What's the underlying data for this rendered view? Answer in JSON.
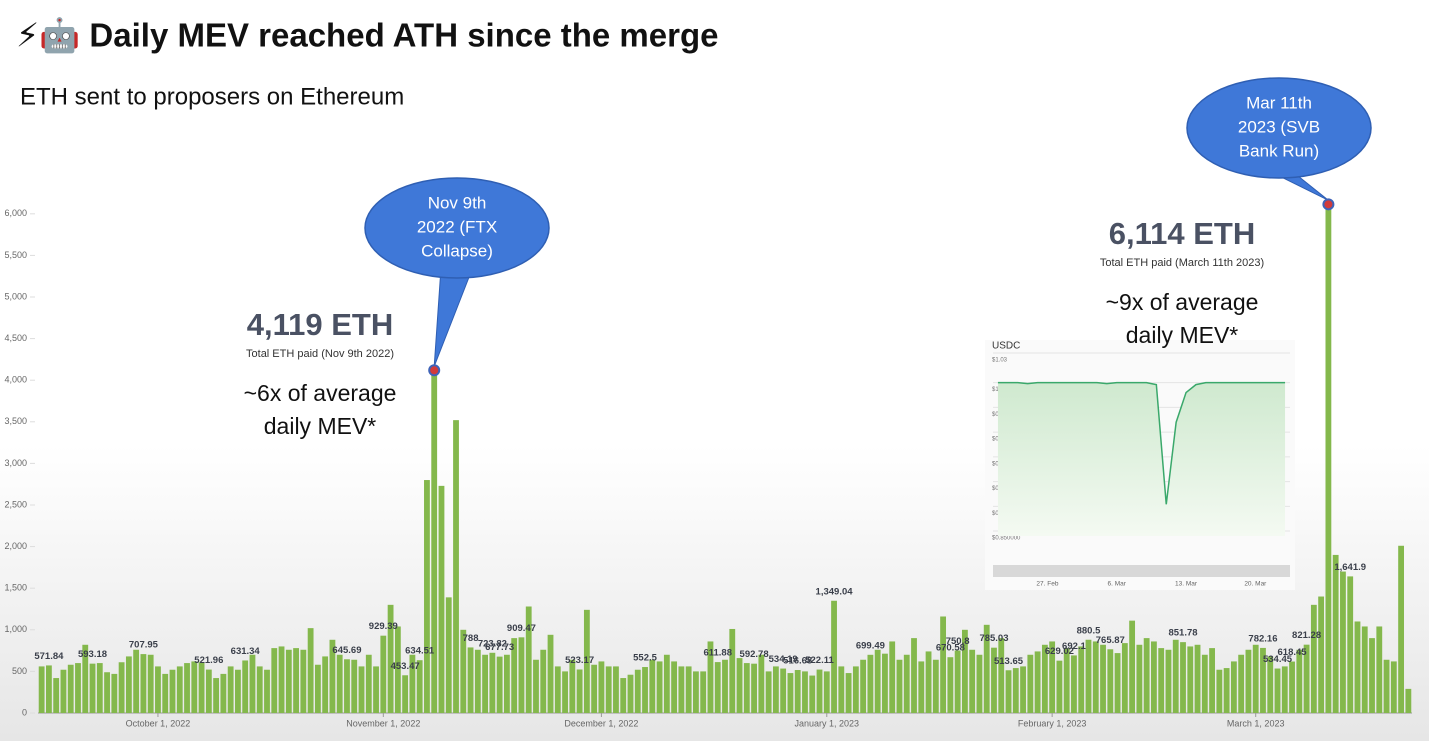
{
  "chart_data": {
    "type": "bar",
    "title": "⚡🤖 Daily MEV reached ATH since the merge",
    "subtitle": "ETH sent to proposers on Ethereum",
    "color": "#84b84c",
    "ylim": [
      0,
      6250
    ],
    "yticks": [
      0,
      500,
      {
        "value": 1000,
        "label": "1,000"
      },
      {
        "value": 1500,
        "label": "1,500"
      },
      {
        "value": 2000,
        "label": "2,000"
      },
      {
        "value": 2500,
        "label": "2,500"
      },
      {
        "value": 3000,
        "label": "3,000"
      },
      {
        "value": 3500,
        "label": "3,500"
      },
      {
        "value": 4000,
        "label": "4,000"
      },
      {
        "value": 4500,
        "label": "4,500"
      },
      {
        "value": 5000,
        "label": "5,000"
      },
      {
        "value": 5500,
        "label": "5,500"
      },
      {
        "value": 6000,
        "label": "6,000"
      }
    ],
    "categories": [
      null,
      null,
      null,
      null,
      null,
      null,
      null,
      null,
      null,
      null,
      null,
      null,
      null,
      null,
      null,
      null,
      "October 1, 2022",
      null,
      null,
      null,
      null,
      null,
      null,
      null,
      null,
      null,
      null,
      null,
      null,
      null,
      null,
      null,
      null,
      null,
      null,
      null,
      null,
      null,
      null,
      null,
      null,
      null,
      null,
      null,
      null,
      null,
      null,
      "November 1, 2022",
      null,
      null,
      null,
      null,
      null,
      null,
      null,
      null,
      null,
      null,
      null,
      null,
      null,
      null,
      null,
      null,
      null,
      null,
      null,
      null,
      null,
      null,
      null,
      null,
      null,
      null,
      null,
      null,
      null,
      "December 1, 2022",
      null,
      null,
      null,
      null,
      null,
      null,
      null,
      null,
      null,
      null,
      null,
      null,
      null,
      null,
      null,
      null,
      null,
      null,
      null,
      null,
      null,
      null,
      null,
      null,
      null,
      null,
      null,
      null,
      null,
      null,
      "January 1, 2023",
      null,
      null,
      null,
      null,
      null,
      null,
      null,
      null,
      null,
      null,
      null,
      null,
      null,
      null,
      null,
      null,
      null,
      null,
      null,
      null,
      null,
      null,
      null,
      null,
      null,
      null,
      null,
      null,
      null,
      null,
      "February 1, 2023",
      null,
      null,
      null,
      null,
      null,
      null,
      null,
      null,
      null,
      null,
      null,
      null,
      null,
      null,
      null,
      null,
      null,
      null,
      null,
      null,
      null,
      null,
      null,
      null,
      null,
      null,
      null,
      "March 1, 2023",
      null,
      null,
      null,
      null,
      null,
      null,
      null,
      null,
      null,
      null,
      null,
      null,
      null,
      null,
      null,
      null,
      null,
      null,
      null,
      null,
      null
    ],
    "values": [
      560,
      571.84,
      420,
      520,
      580,
      600,
      820,
      593.18,
      600,
      490,
      470,
      610,
      680,
      760,
      707.95,
      700,
      560,
      470,
      520,
      560,
      600,
      620,
      610,
      521.96,
      420,
      470,
      560,
      520,
      631.34,
      700,
      560,
      520,
      780,
      800,
      760,
      780,
      760,
      1020,
      580,
      680,
      880,
      700,
      645.69,
      640,
      560,
      700,
      560,
      929.39,
      1300,
      1040,
      453.47,
      700,
      634.51,
      2800,
      4119,
      2730,
      1390,
      3520,
      1000,
      788,
      760,
      700,
      723.82,
      677.73,
      700,
      900,
      909.47,
      1280,
      640,
      760,
      940,
      560,
      500,
      640,
      523.17,
      1240,
      580,
      620,
      560,
      560,
      420,
      460,
      520,
      552.5,
      640,
      620,
      700,
      620,
      560,
      560,
      500,
      500,
      860,
      611.88,
      640,
      1010,
      660,
      600,
      592.78,
      700,
      500,
      560,
      534.19,
      480,
      516.68,
      500,
      450,
      522.11,
      500,
      1349.04,
      560,
      480,
      560,
      640,
      699.49,
      760,
      713,
      860,
      640,
      700,
      900,
      620,
      740,
      640,
      1160,
      670.58,
      750.8,
      1000,
      760,
      700,
      1060,
      785.03,
      900,
      513.65,
      540,
      560,
      700,
      740,
      820,
      860,
      629.02,
      780,
      692.1,
      800,
      880.5,
      860,
      820,
      765.87,
      720,
      840,
      1110,
      820,
      900,
      860,
      780,
      760,
      880,
      851.78,
      800,
      820,
      700,
      780,
      520,
      540,
      620,
      700,
      760,
      820,
      782.16,
      680,
      534.45,
      560,
      618.45,
      760,
      821.28,
      1300,
      1400,
      6114,
      1900,
      1700,
      1641.9,
      1100,
      1040,
      900,
      1040,
      640,
      620,
      2010,
      290
    ],
    "value_labels": [
      null,
      "571.84",
      null,
      null,
      null,
      null,
      null,
      "593.18",
      null,
      null,
      null,
      null,
      null,
      null,
      "707.95",
      null,
      null,
      null,
      null,
      null,
      null,
      null,
      null,
      "521.96",
      null,
      null,
      null,
      null,
      "631.34",
      null,
      null,
      null,
      null,
      null,
      null,
      null,
      null,
      null,
      null,
      null,
      null,
      null,
      "645.69",
      null,
      null,
      null,
      null,
      "929.39",
      null,
      null,
      "453.47",
      null,
      "634.51",
      null,
      null,
      null,
      null,
      null,
      null,
      "788",
      null,
      null,
      "723.82",
      "677.73",
      null,
      null,
      "909.47",
      null,
      null,
      null,
      null,
      null,
      null,
      null,
      "523.17",
      null,
      null,
      null,
      null,
      null,
      null,
      null,
      null,
      "552.5",
      null,
      null,
      null,
      null,
      null,
      null,
      null,
      null,
      null,
      "611.88",
      null,
      null,
      null,
      null,
      "592.78",
      null,
      null,
      null,
      "534.19",
      null,
      "516.68",
      null,
      null,
      "522.11",
      null,
      "1,349.04",
      null,
      null,
      null,
      null,
      "699.49",
      null,
      null,
      null,
      null,
      null,
      null,
      null,
      null,
      null,
      null,
      "670.58",
      "750.8",
      null,
      null,
      null,
      null,
      "785.03",
      null,
      "513.65",
      null,
      null,
      null,
      null,
      null,
      null,
      "629.02",
      null,
      "692.1",
      null,
      "880.5",
      null,
      null,
      "765.87",
      null,
      null,
      null,
      null,
      null,
      null,
      null,
      null,
      null,
      "851.78",
      null,
      null,
      null,
      null,
      null,
      null,
      null,
      null,
      null,
      null,
      "782.16",
      null,
      "534.45",
      null,
      "618.45",
      null,
      "821.28",
      null,
      null,
      null,
      null,
      null,
      "1,641.9",
      null,
      null,
      null,
      null,
      null,
      null,
      null,
      null
    ],
    "annotations": [
      {
        "callout": [
          "Nov 9th",
          "2022 (FTX",
          "Collapse)"
        ],
        "headline": "4,119 ETH",
        "caption": "Total ETH paid (Nov 9th 2022)",
        "note": [
          "~6x of average",
          "daily MEV*"
        ]
      },
      {
        "callout": [
          "Mar 11th",
          "2023 (SVB",
          "Bank Run)"
        ],
        "headline": "6,114 ETH",
        "caption": "Total ETH paid (March 11th 2023)",
        "note": [
          "~9x of average",
          "daily MEV*"
        ]
      }
    ],
    "inset": {
      "type": "line",
      "title": "USDC",
      "color": "#3aa86b",
      "ylim": [
        0.845,
        1.035
      ],
      "yticks": [
        {
          "value": 1.03,
          "label": "$1.03"
        },
        {
          "value": 1.0,
          "label": "$1.00"
        },
        {
          "value": 0.975,
          "label": "$0.975000"
        },
        {
          "value": 0.95,
          "label": "$0.950000"
        },
        {
          "value": 0.925,
          "label": "$0.925000"
        },
        {
          "value": 0.9,
          "label": "$0.900000"
        },
        {
          "value": 0.875,
          "label": "$0.875000"
        },
        {
          "value": 0.85,
          "label": "$0.850000"
        }
      ],
      "categories": [
        null,
        null,
        null,
        null,
        null,
        "27. Feb",
        null,
        null,
        null,
        null,
        null,
        null,
        "6. Mar",
        null,
        null,
        null,
        null,
        null,
        null,
        "13. Mar",
        null,
        null,
        null,
        null,
        null,
        null,
        "20. Mar",
        null,
        null,
        null
      ],
      "values": [
        1.0,
        1.0,
        1.0,
        0.999,
        1.0,
        1.0,
        1.0,
        1.0,
        1.0,
        1.0,
        1.0,
        0.999,
        1.0,
        1.0,
        1.0,
        1.0,
        0.998,
        0.877,
        0.96,
        0.99,
        0.998,
        1.0,
        1.0,
        1.0,
        1.0,
        1.0,
        1.0,
        1.0,
        1.0,
        1.0
      ]
    }
  }
}
